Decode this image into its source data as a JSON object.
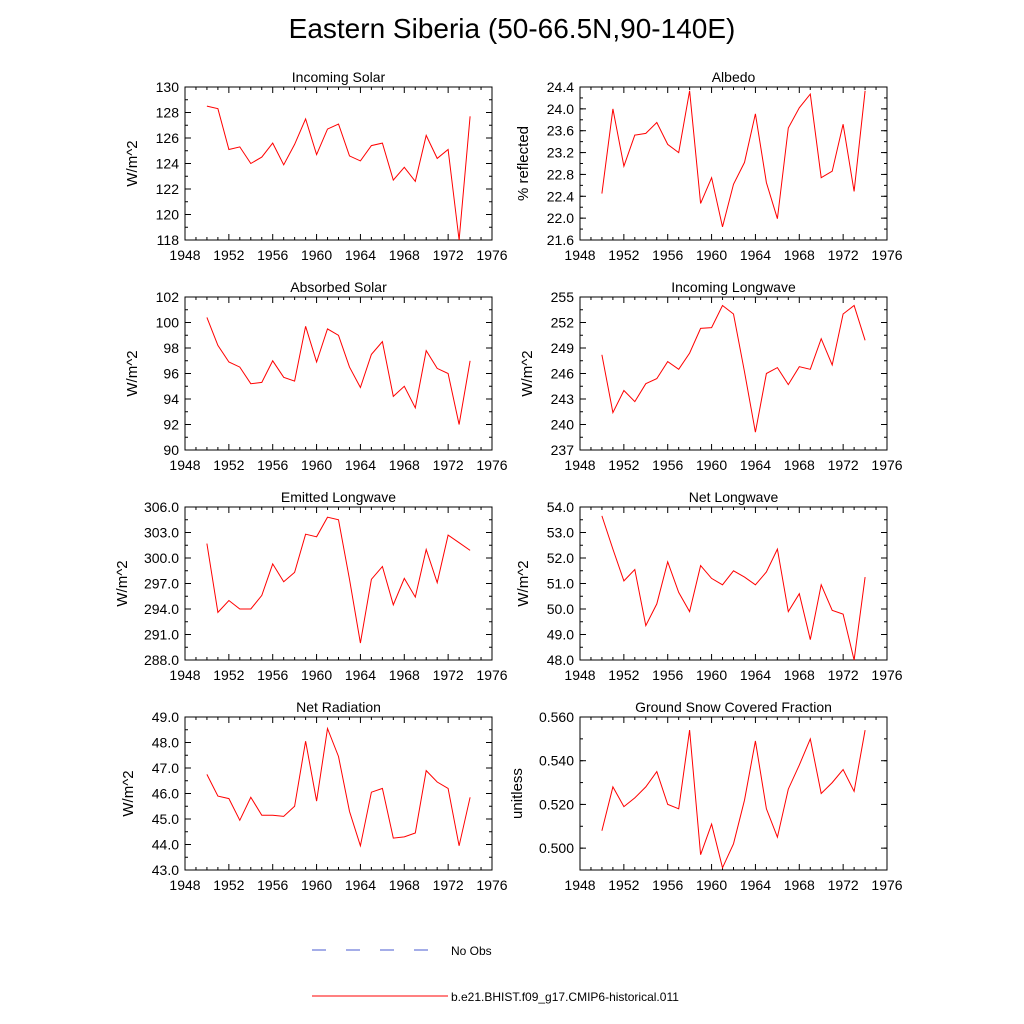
{
  "figure": {
    "title": "Eastern Siberia (50-66.5N,90-140E)",
    "legend": {
      "obs_label": "No Obs",
      "model_label": "b.e21.BHIST.f09_g17.CMIP6-historical.011",
      "obs_color": "#4a5bd0",
      "model_color": "#ff0000"
    },
    "line_color": "#ff0000"
  },
  "chart_data": [
    {
      "type": "line",
      "title": "Incoming Solar",
      "ylabel": "W/m^2",
      "xlim": [
        1948,
        1976
      ],
      "xticks": [
        1948,
        1952,
        1956,
        1960,
        1964,
        1968,
        1972,
        1976
      ],
      "ylim": [
        118,
        130
      ],
      "yticks": [
        "118",
        "120",
        "122",
        "124",
        "126",
        "128",
        "130"
      ],
      "series": [
        {
          "x": [
            1950,
            1951,
            1952,
            1953,
            1954,
            1955,
            1956,
            1957,
            1958,
            1959,
            1960,
            1961,
            1962,
            1963,
            1964,
            1965,
            1966,
            1967,
            1968,
            1969,
            1970,
            1971,
            1972,
            1973,
            1974
          ],
          "values": [
            128.5,
            128.3,
            125.1,
            125.3,
            124.0,
            124.5,
            125.6,
            123.9,
            125.5,
            127.5,
            124.7,
            126.7,
            127.1,
            124.6,
            124.2,
            125.4,
            125.6,
            122.7,
            123.7,
            122.6,
            126.2,
            124.4,
            125.1,
            118.0,
            127.7
          ]
        }
      ]
    },
    {
      "type": "line",
      "title": "Albedo",
      "ylabel": "% reflected",
      "xlim": [
        1948,
        1976
      ],
      "xticks": [
        1948,
        1952,
        1956,
        1960,
        1964,
        1968,
        1972,
        1976
      ],
      "ylim": [
        21.6,
        24.4
      ],
      "yticks": [
        "21.6",
        "22.0",
        "22.4",
        "22.8",
        "23.2",
        "23.6",
        "24.0",
        "24.4"
      ],
      "series": [
        {
          "x": [
            1950,
            1951,
            1952,
            1953,
            1954,
            1955,
            1956,
            1957,
            1958,
            1959,
            1960,
            1961,
            1962,
            1963,
            1964,
            1965,
            1966,
            1967,
            1968,
            1969,
            1970,
            1971,
            1972,
            1973,
            1974
          ],
          "values": [
            22.45,
            24.0,
            22.95,
            23.52,
            23.55,
            23.75,
            23.35,
            23.2,
            24.33,
            22.27,
            22.74,
            21.84,
            22.62,
            23.02,
            23.91,
            22.65,
            21.99,
            23.65,
            24.02,
            24.27,
            22.74,
            22.86,
            23.72,
            22.49,
            24.33
          ]
        }
      ]
    },
    {
      "type": "line",
      "title": "Absorbed Solar",
      "ylabel": "W/m^2",
      "xlim": [
        1948,
        1976
      ],
      "xticks": [
        1948,
        1952,
        1956,
        1960,
        1964,
        1968,
        1972,
        1976
      ],
      "ylim": [
        90,
        102
      ],
      "yticks": [
        "90",
        "92",
        "94",
        "96",
        "98",
        "100",
        "102"
      ],
      "series": [
        {
          "x": [
            1950,
            1951,
            1952,
            1953,
            1954,
            1955,
            1956,
            1957,
            1958,
            1959,
            1960,
            1961,
            1962,
            1963,
            1964,
            1965,
            1966,
            1967,
            1968,
            1969,
            1970,
            1971,
            1972,
            1973,
            1974
          ],
          "values": [
            100.4,
            98.2,
            96.9,
            96.5,
            95.2,
            95.3,
            97.0,
            95.7,
            95.4,
            99.7,
            96.9,
            99.5,
            99.0,
            96.5,
            94.9,
            97.5,
            98.5,
            94.2,
            95.0,
            93.3,
            97.8,
            96.4,
            96.0,
            92.0,
            97.0
          ]
        }
      ]
    },
    {
      "type": "line",
      "title": "Incoming Longwave",
      "ylabel": "W/m^2",
      "xlim": [
        1948,
        1976
      ],
      "xticks": [
        1948,
        1952,
        1956,
        1960,
        1964,
        1968,
        1972,
        1976
      ],
      "ylim": [
        237,
        255
      ],
      "yticks": [
        "237",
        "240",
        "243",
        "246",
        "249",
        "252",
        "255"
      ],
      "series": [
        {
          "x": [
            1950,
            1951,
            1952,
            1953,
            1954,
            1955,
            1956,
            1957,
            1958,
            1959,
            1960,
            1961,
            1962,
            1963,
            1964,
            1965,
            1966,
            1967,
            1968,
            1969,
            1970,
            1971,
            1972,
            1973,
            1974
          ],
          "values": [
            248.2,
            241.4,
            244.0,
            242.7,
            244.8,
            245.4,
            247.4,
            246.5,
            248.4,
            251.3,
            251.4,
            254.0,
            253.0,
            246.2,
            239.1,
            246.0,
            246.7,
            244.7,
            246.8,
            246.5,
            250.1,
            247.0,
            253.0,
            254.0,
            249.9
          ]
        }
      ]
    },
    {
      "type": "line",
      "title": "Emitted Longwave",
      "ylabel": "W/m^2",
      "xlim": [
        1948,
        1976
      ],
      "xticks": [
        1948,
        1952,
        1956,
        1960,
        1964,
        1968,
        1972,
        1976
      ],
      "ylim": [
        288,
        306
      ],
      "yticks": [
        "288.0",
        "291.0",
        "294.0",
        "297.0",
        "300.0",
        "303.0",
        "306.0"
      ],
      "series": [
        {
          "x": [
            1950,
            1951,
            1952,
            1953,
            1954,
            1955,
            1956,
            1957,
            1958,
            1959,
            1960,
            1961,
            1962,
            1963,
            1964,
            1965,
            1966,
            1967,
            1968,
            1969,
            1970,
            1971,
            1972,
            1973,
            1974
          ],
          "values": [
            301.7,
            293.6,
            295.0,
            294.0,
            294.0,
            295.6,
            299.3,
            297.2,
            298.3,
            302.8,
            302.5,
            304.8,
            304.5,
            297.5,
            290.0,
            297.5,
            299.0,
            294.5,
            297.6,
            295.4,
            301.0,
            297.1,
            302.7,
            301.8,
            300.9
          ]
        }
      ]
    },
    {
      "type": "line",
      "title": "Net Longwave",
      "ylabel": "W/m^2",
      "xlim": [
        1948,
        1976
      ],
      "xticks": [
        1948,
        1952,
        1956,
        1960,
        1964,
        1968,
        1972,
        1976
      ],
      "ylim": [
        48,
        54
      ],
      "yticks": [
        "48.0",
        "49.0",
        "50.0",
        "51.0",
        "52.0",
        "53.0",
        "54.0"
      ],
      "series": [
        {
          "x": [
            1950,
            1951,
            1952,
            1953,
            1954,
            1955,
            1956,
            1957,
            1958,
            1959,
            1960,
            1961,
            1962,
            1963,
            1964,
            1965,
            1966,
            1967,
            1968,
            1969,
            1970,
            1971,
            1972,
            1973,
            1974
          ],
          "values": [
            53.65,
            52.35,
            51.1,
            51.55,
            49.35,
            50.2,
            51.85,
            50.65,
            49.9,
            51.7,
            51.2,
            50.95,
            51.5,
            51.25,
            50.95,
            51.45,
            52.35,
            49.9,
            50.6,
            48.8,
            50.95,
            49.95,
            49.8,
            48.0,
            51.25
          ]
        }
      ]
    },
    {
      "type": "line",
      "title": "Net Radiation",
      "ylabel": "W/m^2",
      "xlim": [
        1948,
        1976
      ],
      "xticks": [
        1948,
        1952,
        1956,
        1960,
        1964,
        1968,
        1972,
        1976
      ],
      "ylim": [
        43,
        49
      ],
      "yticks": [
        "43.0",
        "44.0",
        "45.0",
        "46.0",
        "47.0",
        "48.0",
        "49.0"
      ],
      "series": [
        {
          "x": [
            1950,
            1951,
            1952,
            1953,
            1954,
            1955,
            1956,
            1957,
            1958,
            1959,
            1960,
            1961,
            1962,
            1963,
            1964,
            1965,
            1966,
            1967,
            1968,
            1969,
            1970,
            1971,
            1972,
            1973,
            1974
          ],
          "values": [
            46.75,
            45.9,
            45.8,
            44.95,
            45.85,
            45.15,
            45.15,
            45.1,
            45.5,
            48.05,
            45.7,
            48.55,
            47.45,
            45.3,
            43.95,
            46.05,
            46.2,
            44.25,
            44.3,
            44.45,
            46.9,
            46.45,
            46.2,
            43.95,
            45.85
          ]
        }
      ]
    },
    {
      "type": "line",
      "title": "Ground Snow Covered Fraction",
      "ylabel": "unitless",
      "xlim": [
        1948,
        1976
      ],
      "xticks": [
        1948,
        1952,
        1956,
        1960,
        1964,
        1968,
        1972,
        1976
      ],
      "ylim": [
        0.49,
        0.56
      ],
      "yticks": [
        "0.500",
        "0.520",
        "0.540",
        "0.560"
      ],
      "ytickvals": [
        0.5,
        0.52,
        0.54,
        0.56
      ],
      "series": [
        {
          "x": [
            1950,
            1951,
            1952,
            1953,
            1954,
            1955,
            1956,
            1957,
            1958,
            1959,
            1960,
            1961,
            1962,
            1963,
            1964,
            1965,
            1966,
            1967,
            1968,
            1969,
            1970,
            1971,
            1972,
            1973,
            1974
          ],
          "values": [
            0.508,
            0.528,
            0.519,
            0.523,
            0.528,
            0.535,
            0.52,
            0.518,
            0.554,
            0.497,
            0.511,
            0.491,
            0.502,
            0.522,
            0.549,
            0.518,
            0.505,
            0.527,
            0.538,
            0.55,
            0.525,
            0.53,
            0.536,
            0.526,
            0.554
          ]
        }
      ]
    }
  ]
}
